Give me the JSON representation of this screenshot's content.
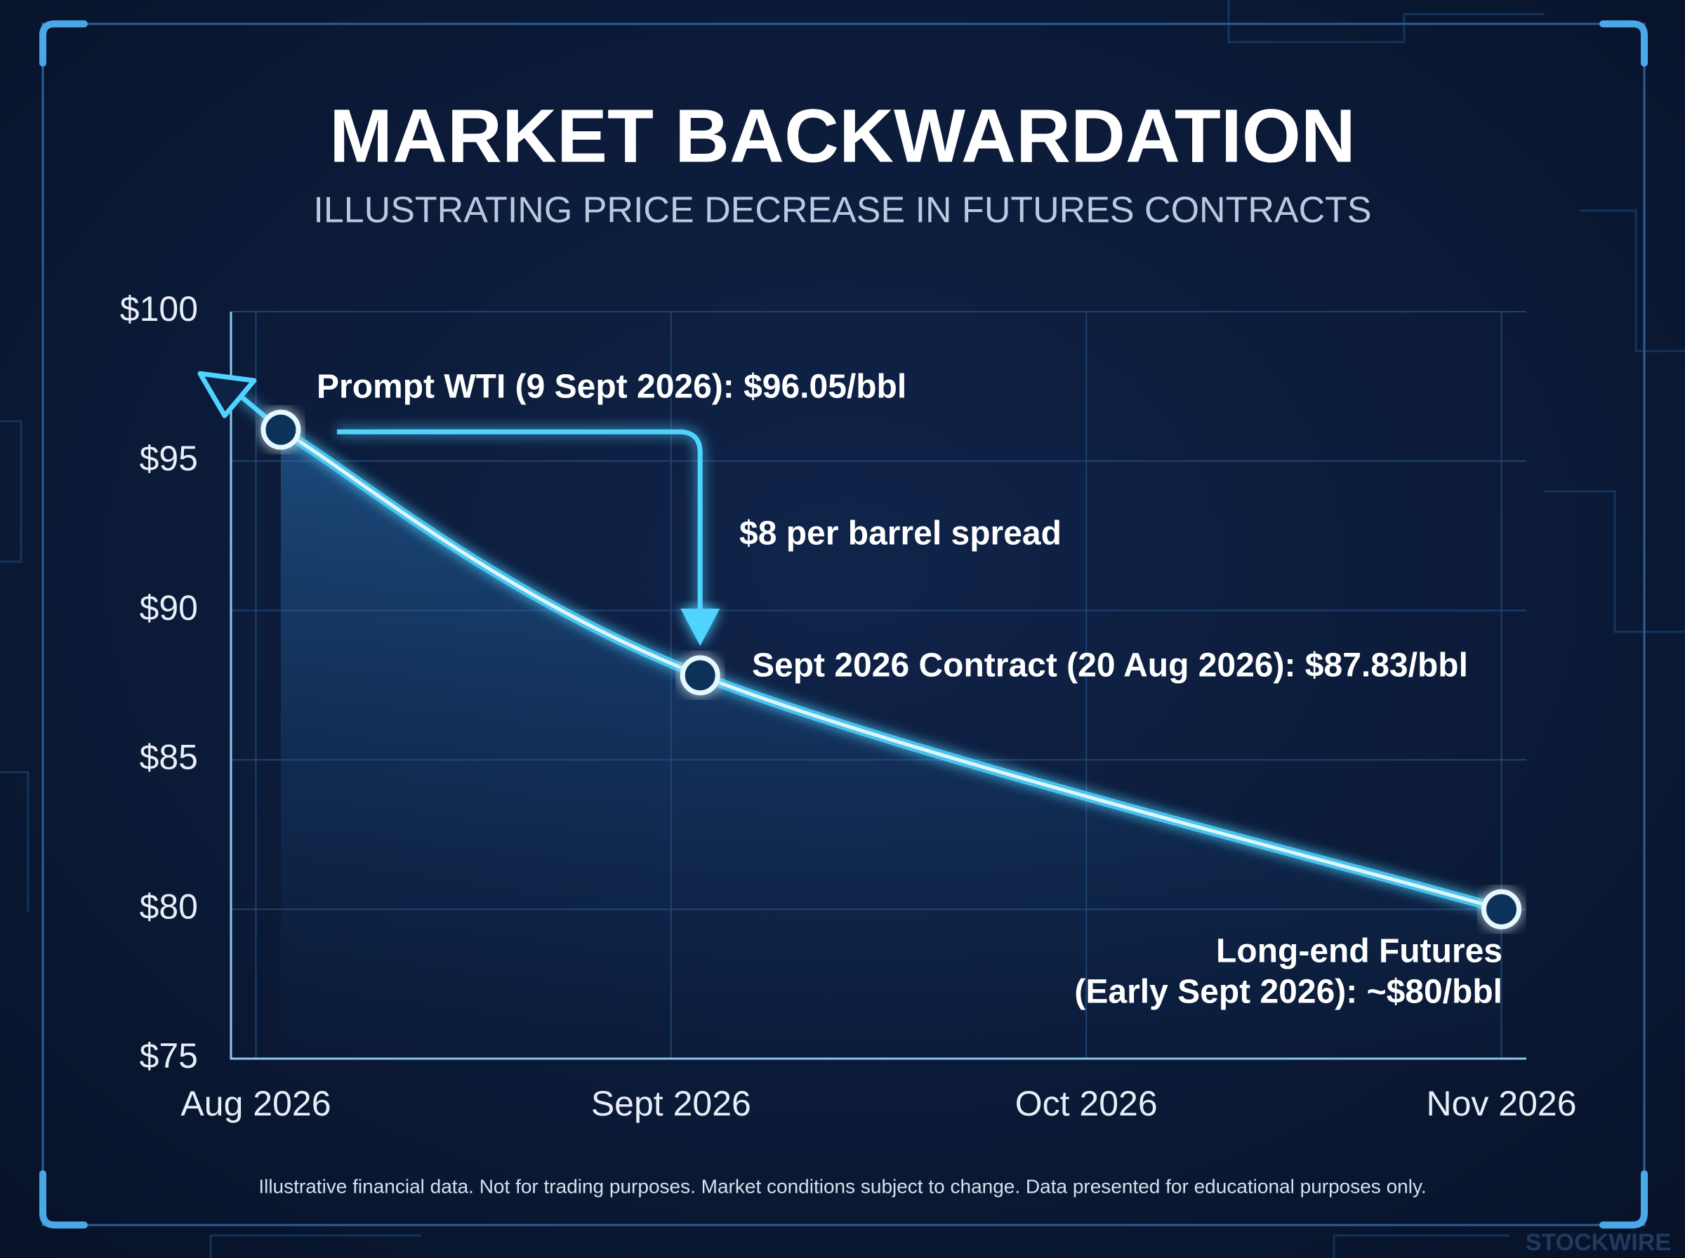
{
  "chart_data": {
    "type": "line",
    "title": "MARKET BACKWARDATION",
    "subtitle": "ILLUSTRATING PRICE DECREASE IN FUTURES CONTRACTS",
    "x": [
      0.06,
      1.07,
      3.0
    ],
    "xlim": [
      -0.06,
      3.06
    ],
    "xticks": [
      {
        "value": 0,
        "label": "Aug 2026"
      },
      {
        "value": 1,
        "label": "Sept 2026"
      },
      {
        "value": 2,
        "label": "Oct 2026"
      },
      {
        "value": 3,
        "label": "Nov 2026"
      }
    ],
    "ylim": [
      75,
      100
    ],
    "yticks": [
      {
        "value": 75,
        "label": "$75"
      },
      {
        "value": 80,
        "label": "$80"
      },
      {
        "value": 85,
        "label": "$85"
      },
      {
        "value": 90,
        "label": "$90"
      },
      {
        "value": 95,
        "label": "$95"
      },
      {
        "value": 100,
        "label": "$100"
      }
    ],
    "grid": true,
    "series": [
      {
        "color": "#4fd3ff",
        "values": [
          96.05,
          87.83,
          80
        ]
      }
    ],
    "annotations": [
      "Prompt WTI (9 Sept 2026): $96.05/bbl",
      "$8 per barrel spread",
      "Sept 2026 Contract (20 Aug 2026): $87.83/bbl",
      "Long-end Futures",
      "(Early Sept 2026): ~$80/bbl"
    ],
    "footnote": "Illustrative financial data. Not for trading purposes. Market conditions subject to change. Data presented for educational purposes only.",
    "watermark": "STOCKWIRE"
  }
}
